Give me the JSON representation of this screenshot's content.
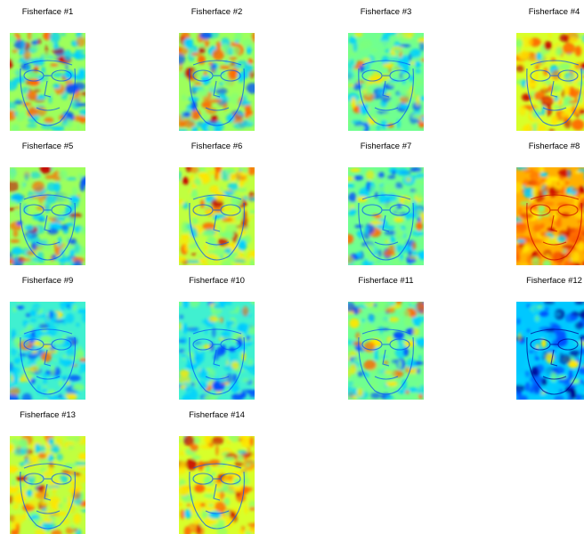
{
  "figure": {
    "panels": [
      {
        "title": "Fisherface #1",
        "icon": "fisherface-heatmap-icon",
        "tone": "mixed"
      },
      {
        "title": "Fisherface #2",
        "icon": "fisherface-heatmap-icon",
        "tone": "mixed"
      },
      {
        "title": "Fisherface #3",
        "icon": "fisherface-heatmap-icon",
        "tone": "cool-green"
      },
      {
        "title": "Fisherface #4",
        "icon": "fisherface-heatmap-icon",
        "tone": "warm"
      },
      {
        "title": "Fisherface #5",
        "icon": "fisherface-heatmap-icon",
        "tone": "mixed"
      },
      {
        "title": "Fisherface #6",
        "icon": "fisherface-heatmap-icon",
        "tone": "warm-yellow"
      },
      {
        "title": "Fisherface #7",
        "icon": "fisherface-heatmap-icon",
        "tone": "cool-green"
      },
      {
        "title": "Fisherface #8",
        "icon": "fisherface-heatmap-icon",
        "tone": "hot"
      },
      {
        "title": "Fisherface #9",
        "icon": "fisherface-heatmap-icon",
        "tone": "cool"
      },
      {
        "title": "Fisherface #10",
        "icon": "fisherface-heatmap-icon",
        "tone": "cool"
      },
      {
        "title": "Fisherface #11",
        "icon": "fisherface-heatmap-icon",
        "tone": "cool-green"
      },
      {
        "title": "Fisherface #12",
        "icon": "fisherface-heatmap-icon",
        "tone": "deep-cool"
      },
      {
        "title": "Fisherface #13",
        "icon": "fisherface-heatmap-icon",
        "tone": "warm-yellow"
      },
      {
        "title": "Fisherface #14",
        "icon": "fisherface-heatmap-icon",
        "tone": "warm"
      }
    ],
    "colormap": [
      "#00008f",
      "#0050ff",
      "#00d0ff",
      "#7dff7a",
      "#ffe600",
      "#ff6a00",
      "#c80000"
    ]
  }
}
